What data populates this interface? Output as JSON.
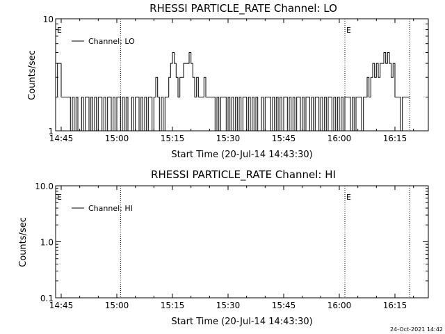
{
  "chart_data": [
    {
      "type": "line",
      "title": "RHESSI PARTICLE_RATE Channel: LO",
      "xlabel": "Start Time (20-Jul-14 14:43:30)",
      "ylabel": "Counts/sec",
      "yscale": "log",
      "xlim": [
        "14:43:30",
        "16:24:00"
      ],
      "ylim": [
        1,
        10
      ],
      "x_ticks": [
        "14:45",
        "15:00",
        "15:15",
        "15:30",
        "15:45",
        "16:00",
        "16:15"
      ],
      "y_ticks": [
        "1",
        "10"
      ],
      "grid": false,
      "legend": {
        "position": "top-left",
        "entries": [
          "Channel: LO"
        ]
      },
      "markers": [
        {
          "time": "14:43:30",
          "label": "E"
        },
        {
          "time": "15:01:00",
          "label": ""
        },
        {
          "time": "16:01:30",
          "label": "E"
        },
        {
          "time": "16:19:00",
          "label": ""
        }
      ],
      "series": [
        {
          "name": "Channel: LO",
          "points": [
            [
              "14:43:30",
              2
            ],
            [
              "14:44:00",
              4
            ],
            [
              "14:45:00",
              2
            ],
            [
              "14:47:00",
              2
            ],
            [
              "14:47:30",
              1
            ],
            [
              "14:48:00",
              2
            ],
            [
              "14:48:30",
              1
            ],
            [
              "14:49:00",
              2
            ],
            [
              "14:49:30",
              1
            ],
            [
              "14:50:00",
              1
            ],
            [
              "14:50:30",
              2
            ],
            [
              "14:51:00",
              1
            ],
            [
              "14:51:30",
              2
            ],
            [
              "14:52:00",
              2
            ],
            [
              "14:52:30",
              1
            ],
            [
              "14:53:00",
              2
            ],
            [
              "14:53:30",
              1
            ],
            [
              "14:54:00",
              2
            ],
            [
              "14:54:30",
              1
            ],
            [
              "14:55:00",
              2
            ],
            [
              "14:56:00",
              1
            ],
            [
              "14:56:30",
              2
            ],
            [
              "14:57:00",
              1
            ],
            [
              "14:57:30",
              2
            ],
            [
              "14:58:30",
              1
            ],
            [
              "14:59:00",
              2
            ],
            [
              "14:59:30",
              1
            ],
            [
              "15:00:00",
              2
            ],
            [
              "15:01:00",
              1
            ],
            [
              "15:01:30",
              2
            ],
            [
              "15:02:00",
              1
            ],
            [
              "15:02:30",
              2
            ],
            [
              "15:03:00",
              1
            ],
            [
              "15:04:00",
              2
            ],
            [
              "15:04:30",
              1
            ],
            [
              "15:05:00",
              2
            ],
            [
              "15:06:00",
              1
            ],
            [
              "15:06:30",
              2
            ],
            [
              "15:07:00",
              1
            ],
            [
              "15:07:30",
              2
            ],
            [
              "15:08:00",
              1
            ],
            [
              "15:08:30",
              2
            ],
            [
              "15:09:00",
              2
            ],
            [
              "15:09:30",
              1
            ],
            [
              "15:10:00",
              2
            ],
            [
              "15:10:30",
              3
            ],
            [
              "15:11:00",
              2
            ],
            [
              "15:11:30",
              1
            ],
            [
              "15:12:00",
              2
            ],
            [
              "15:12:30",
              1
            ],
            [
              "15:13:00",
              2
            ],
            [
              "15:13:30",
              2
            ],
            [
              "15:14:00",
              3
            ],
            [
              "15:14:30",
              4
            ],
            [
              "15:15:00",
              5
            ],
            [
              "15:15:30",
              4
            ],
            [
              "15:16:00",
              3
            ],
            [
              "15:16:30",
              2
            ],
            [
              "15:17:00",
              3
            ],
            [
              "15:17:30",
              3
            ],
            [
              "15:18:00",
              4
            ],
            [
              "15:19:00",
              4
            ],
            [
              "15:19:30",
              5
            ],
            [
              "15:20:00",
              4
            ],
            [
              "15:20:30",
              3
            ],
            [
              "15:21:00",
              2
            ],
            [
              "15:21:30",
              3
            ],
            [
              "15:22:00",
              2
            ],
            [
              "15:23:00",
              2
            ],
            [
              "15:23:30",
              3
            ],
            [
              "15:24:00",
              2
            ],
            [
              "15:26:00",
              2
            ],
            [
              "15:26:30",
              1
            ],
            [
              "15:27:00",
              2
            ],
            [
              "15:27:30",
              1
            ],
            [
              "15:28:00",
              2
            ],
            [
              "15:29:00",
              2
            ],
            [
              "15:29:30",
              1
            ],
            [
              "15:30:00",
              2
            ],
            [
              "15:30:30",
              1
            ],
            [
              "15:31:00",
              2
            ],
            [
              "15:31:30",
              1
            ],
            [
              "15:32:00",
              2
            ],
            [
              "15:32:30",
              1
            ],
            [
              "15:33:00",
              2
            ],
            [
              "15:33:30",
              1
            ],
            [
              "15:34:00",
              2
            ],
            [
              "15:35:00",
              1
            ],
            [
              "15:35:30",
              2
            ],
            [
              "15:36:00",
              1
            ],
            [
              "15:36:30",
              2
            ],
            [
              "15:37:00",
              1
            ],
            [
              "15:37:30",
              2
            ],
            [
              "15:38:00",
              1
            ],
            [
              "15:39:00",
              2
            ],
            [
              "15:39:30",
              1
            ],
            [
              "15:40:00",
              2
            ],
            [
              "15:41:00",
              2
            ],
            [
              "15:41:30",
              1
            ],
            [
              "15:42:00",
              2
            ],
            [
              "15:42:30",
              1
            ],
            [
              "15:43:00",
              2
            ],
            [
              "15:43:30",
              1
            ],
            [
              "15:44:00",
              2
            ],
            [
              "15:44:30",
              1
            ],
            [
              "15:45:00",
              2
            ],
            [
              "15:46:00",
              1
            ],
            [
              "15:46:30",
              2
            ],
            [
              "15:47:00",
              1
            ],
            [
              "15:47:30",
              2
            ],
            [
              "15:48:00",
              1
            ],
            [
              "15:48:30",
              2
            ],
            [
              "15:49:30",
              1
            ],
            [
              "15:50:00",
              2
            ],
            [
              "15:50:30",
              1
            ],
            [
              "15:51:00",
              2
            ],
            [
              "15:52:00",
              1
            ],
            [
              "15:52:30",
              2
            ],
            [
              "15:53:00",
              1
            ],
            [
              "15:53:30",
              2
            ],
            [
              "15:54:30",
              1
            ],
            [
              "15:55:00",
              2
            ],
            [
              "15:55:30",
              1
            ],
            [
              "15:56:00",
              2
            ],
            [
              "15:56:30",
              1
            ],
            [
              "15:57:00",
              2
            ],
            [
              "15:58:00",
              1
            ],
            [
              "15:58:30",
              2
            ],
            [
              "15:59:00",
              1
            ],
            [
              "15:59:30",
              2
            ],
            [
              "16:00:00",
              1
            ],
            [
              "16:00:30",
              2
            ],
            [
              "16:01:00",
              1
            ],
            [
              "16:01:30",
              2
            ],
            [
              "16:02:30",
              2
            ],
            [
              "16:03:00",
              1
            ],
            [
              "16:03:30",
              2
            ],
            [
              "16:04:00",
              1
            ],
            [
              "16:04:30",
              2
            ],
            [
              "16:05:30",
              2
            ],
            [
              "16:06:00",
              1
            ],
            [
              "16:06:30",
              2
            ],
            [
              "16:07:00",
              2
            ],
            [
              "16:07:30",
              3
            ],
            [
              "16:08:00",
              2
            ],
            [
              "16:08:30",
              3
            ],
            [
              "16:09:00",
              4
            ],
            [
              "16:09:30",
              3
            ],
            [
              "16:10:00",
              4
            ],
            [
              "16:10:30",
              3
            ],
            [
              "16:11:00",
              4
            ],
            [
              "16:11:30",
              4
            ],
            [
              "16:12:00",
              5
            ],
            [
              "16:12:30",
              4
            ],
            [
              "16:13:00",
              5
            ],
            [
              "16:13:30",
              4
            ],
            [
              "16:14:00",
              3
            ],
            [
              "16:14:30",
              4
            ],
            [
              "16:15:00",
              2
            ],
            [
              "16:16:00",
              2
            ],
            [
              "16:16:30",
              1
            ],
            [
              "16:17:00",
              2
            ],
            [
              "16:19:00",
              2
            ]
          ]
        }
      ]
    },
    {
      "type": "line",
      "title": "RHESSI PARTICLE_RATE Channel: HI",
      "xlabel": "Start Time (20-Jul-14 14:43:30)",
      "ylabel": "Counts/sec",
      "yscale": "log",
      "xlim": [
        "14:43:30",
        "16:24:00"
      ],
      "ylim": [
        0.1,
        10.0
      ],
      "x_ticks": [
        "14:45",
        "15:00",
        "15:15",
        "15:30",
        "15:45",
        "16:00",
        "16:15"
      ],
      "y_ticks": [
        "0.1",
        "1.0",
        "10.0"
      ],
      "grid": false,
      "legend": {
        "position": "top-left",
        "entries": [
          "Channel: HI"
        ]
      },
      "markers": [
        {
          "time": "14:43:30",
          "label": "E"
        },
        {
          "time": "15:01:00",
          "label": ""
        },
        {
          "time": "16:01:30",
          "label": "E"
        },
        {
          "time": "16:19:00",
          "label": ""
        }
      ],
      "series": [
        {
          "name": "Channel: HI",
          "points": []
        }
      ]
    }
  ],
  "footer": {
    "timestamp": "24-Oct-2021 14:42"
  }
}
